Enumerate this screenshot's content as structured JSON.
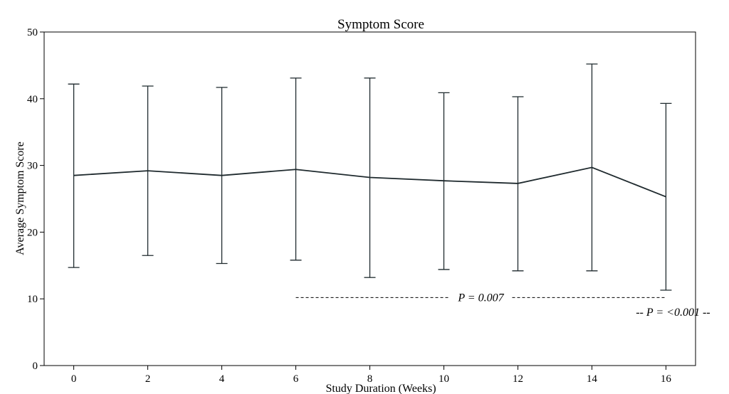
{
  "chart_data": {
    "type": "line",
    "title": "Symptom Score",
    "xlabel": "Study Duration (Weeks)",
    "ylabel": "Average Symptom Score",
    "xlim": [
      -0.8,
      16.8
    ],
    "ylim": [
      0,
      50
    ],
    "x_ticks": [
      0,
      2,
      4,
      6,
      8,
      10,
      12,
      14,
      16
    ],
    "y_ticks": [
      0,
      10,
      20,
      30,
      40,
      50
    ],
    "grid": false,
    "series": [
      {
        "x": [
          0,
          2,
          4,
          6,
          8,
          10,
          12,
          14,
          16
        ],
        "values": [
          28.5,
          29.2,
          28.5,
          29.4,
          28.2,
          27.7,
          27.3,
          29.7,
          25.3
        ],
        "error_low": [
          14.7,
          16.5,
          15.3,
          15.8,
          13.2,
          14.4,
          14.2,
          14.2,
          11.3
        ],
        "error_high": [
          42.2,
          41.9,
          41.7,
          43.1,
          43.1,
          40.9,
          40.3,
          45.2,
          39.3
        ],
        "color": "#1f2a2e"
      }
    ],
    "annotations": [
      {
        "text": "P = 0.007",
        "x_start": 6,
        "x_end": 16,
        "y": 10.2,
        "style": "dashed"
      },
      {
        "text": "-- P = <0.001 --",
        "x": 16,
        "y": 8.0
      }
    ]
  }
}
